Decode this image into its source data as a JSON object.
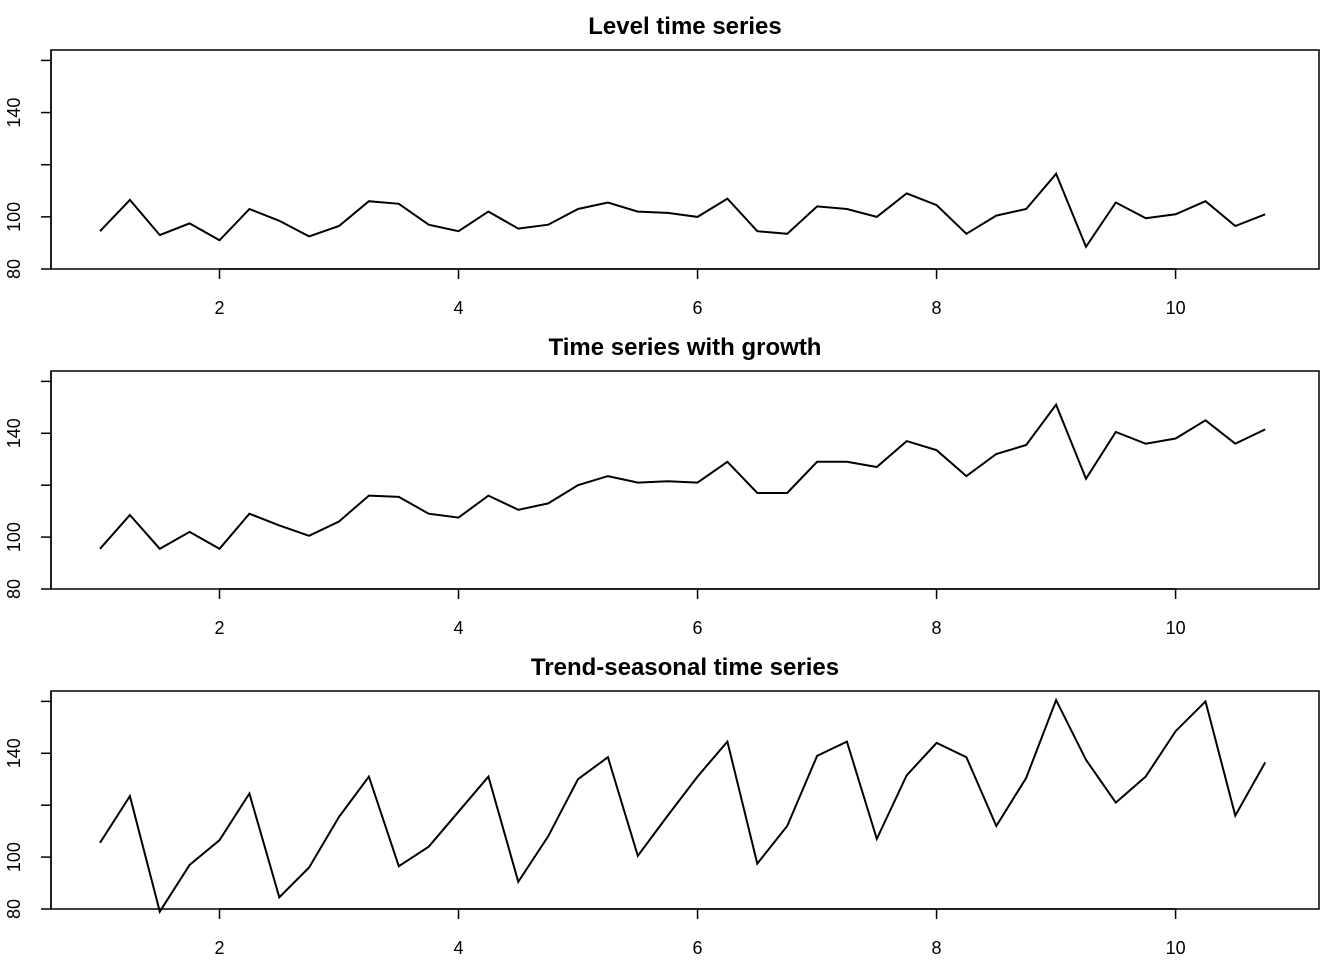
{
  "chart_data": [
    {
      "type": "line",
      "title": "Level time series",
      "xlabel": "",
      "ylabel": "",
      "xlim": [
        0.59,
        11.2
      ],
      "ylim": [
        80,
        164
      ],
      "x_ticks": [
        2,
        4,
        6,
        8,
        10
      ],
      "y_ticks": [
        80,
        100,
        140
      ],
      "x": [
        1.0,
        1.25,
        1.5,
        1.75,
        2.0,
        2.25,
        2.5,
        2.75,
        3.0,
        3.25,
        3.5,
        3.75,
        4.0,
        4.25,
        4.5,
        4.75,
        5.0,
        5.25,
        5.5,
        5.75,
        6.0,
        6.25,
        6.5,
        6.75,
        7.0,
        7.25,
        7.5,
        7.75,
        8.0,
        8.25,
        8.5,
        8.75,
        9.0,
        9.25,
        9.5,
        9.75,
        10.0,
        10.25,
        10.5,
        10.75
      ],
      "series": [
        {
          "values": [
            94.5,
            106.5,
            93,
            97.5,
            91,
            103,
            98.5,
            92.5,
            96.5,
            106,
            105,
            97,
            94.5,
            102,
            95.5,
            97,
            103,
            105.5,
            102,
            101.5,
            100,
            107,
            94.5,
            93.5,
            104,
            103,
            100,
            109,
            104.5,
            93.5,
            100.5,
            103,
            116.5,
            88.5,
            105.5,
            99.5,
            101,
            106,
            96.5,
            101
          ]
        }
      ]
    },
    {
      "type": "line",
      "title": "Time series with growth",
      "xlabel": "",
      "ylabel": "",
      "xlim": [
        0.59,
        11.2
      ],
      "ylim": [
        80,
        164
      ],
      "x_ticks": [
        2,
        4,
        6,
        8,
        10
      ],
      "y_ticks": [
        80,
        100,
        140
      ],
      "x": [
        1.0,
        1.25,
        1.5,
        1.75,
        2.0,
        2.25,
        2.5,
        2.75,
        3.0,
        3.25,
        3.5,
        3.75,
        4.0,
        4.25,
        4.5,
        4.75,
        5.0,
        5.25,
        5.5,
        5.75,
        6.0,
        6.25,
        6.5,
        6.75,
        7.0,
        7.25,
        7.5,
        7.75,
        8.0,
        8.25,
        8.5,
        8.75,
        9.0,
        9.25,
        9.5,
        9.75,
        10.0,
        10.25,
        10.5,
        10.75
      ],
      "series": [
        {
          "values": [
            95.5,
            108.5,
            95.5,
            102,
            95.5,
            109,
            104.5,
            100.5,
            106,
            116,
            115.5,
            109,
            107.5,
            116,
            110.5,
            113,
            120,
            123.5,
            121,
            121.5,
            121,
            129,
            117,
            117,
            129,
            129,
            127,
            137,
            133.5,
            123.5,
            132,
            135.5,
            151,
            122.5,
            140.5,
            136,
            138,
            145,
            136,
            141.5
          ]
        }
      ]
    },
    {
      "type": "line",
      "title": "Trend-seasonal time series",
      "xlabel": "",
      "ylabel": "",
      "xlim": [
        0.59,
        11.2
      ],
      "ylim": [
        80,
        164
      ],
      "x_ticks": [
        2,
        4,
        6,
        8,
        10
      ],
      "y_ticks": [
        80,
        100,
        140
      ],
      "x": [
        1.0,
        1.25,
        1.5,
        1.75,
        2.0,
        2.25,
        2.5,
        2.75,
        3.0,
        3.25,
        3.5,
        3.75,
        4.0,
        4.25,
        4.5,
        4.75,
        5.0,
        5.25,
        5.5,
        5.75,
        6.0,
        6.25,
        6.5,
        6.75,
        7.0,
        7.25,
        7.5,
        7.75,
        8.0,
        8.25,
        8.5,
        8.75,
        9.0,
        9.25,
        9.5,
        9.75,
        10.0,
        10.25,
        10.5,
        10.75
      ],
      "series": [
        {
          "values": [
            105.5,
            123.5,
            79,
            97,
            106.5,
            124.5,
            84.5,
            96,
            115.5,
            131,
            96.5,
            104,
            117.5,
            131,
            90.5,
            108,
            130,
            138.5,
            100.5,
            116,
            131,
            144.5,
            97.5,
            112,
            139,
            144.5,
            107,
            131.5,
            144,
            138.5,
            112,
            130.5,
            160.5,
            137.5,
            121,
            131,
            148.5,
            160,
            116,
            136.5
          ]
        }
      ]
    }
  ]
}
